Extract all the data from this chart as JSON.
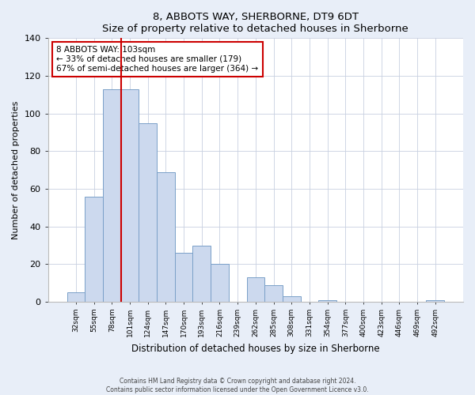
{
  "title": "8, ABBOTS WAY, SHERBORNE, DT9 6DT",
  "subtitle": "Size of property relative to detached houses in Sherborne",
  "xlabel": "Distribution of detached houses by size in Sherborne",
  "ylabel": "Number of detached properties",
  "bar_labels": [
    "32sqm",
    "55sqm",
    "78sqm",
    "101sqm",
    "124sqm",
    "147sqm",
    "170sqm",
    "193sqm",
    "216sqm",
    "239sqm",
    "262sqm",
    "285sqm",
    "308sqm",
    "331sqm",
    "354sqm",
    "377sqm",
    "400sqm",
    "423sqm",
    "446sqm",
    "469sqm",
    "492sqm"
  ],
  "bar_values": [
    5,
    56,
    113,
    113,
    95,
    69,
    26,
    30,
    20,
    0,
    13,
    9,
    3,
    0,
    1,
    0,
    0,
    0,
    0,
    0,
    1
  ],
  "bar_color": "#ccd9ee",
  "bar_edge_color": "#7aa0c8",
  "vline_x_index": 3,
  "vline_color": "#cc0000",
  "annotation_text": "8 ABBOTS WAY: 103sqm\n← 33% of detached houses are smaller (179)\n67% of semi-detached houses are larger (364) →",
  "annotation_box_color": "#ffffff",
  "annotation_box_edge": "#cc0000",
  "ylim": [
    0,
    140
  ],
  "yticks": [
    0,
    20,
    40,
    60,
    80,
    100,
    120,
    140
  ],
  "footer_line1": "Contains HM Land Registry data © Crown copyright and database right 2024.",
  "footer_line2": "Contains public sector information licensed under the Open Government Licence v3.0.",
  "bg_color": "#e8eef8",
  "plot_bg_color": "#ffffff",
  "grid_color": "#c8d0e0"
}
